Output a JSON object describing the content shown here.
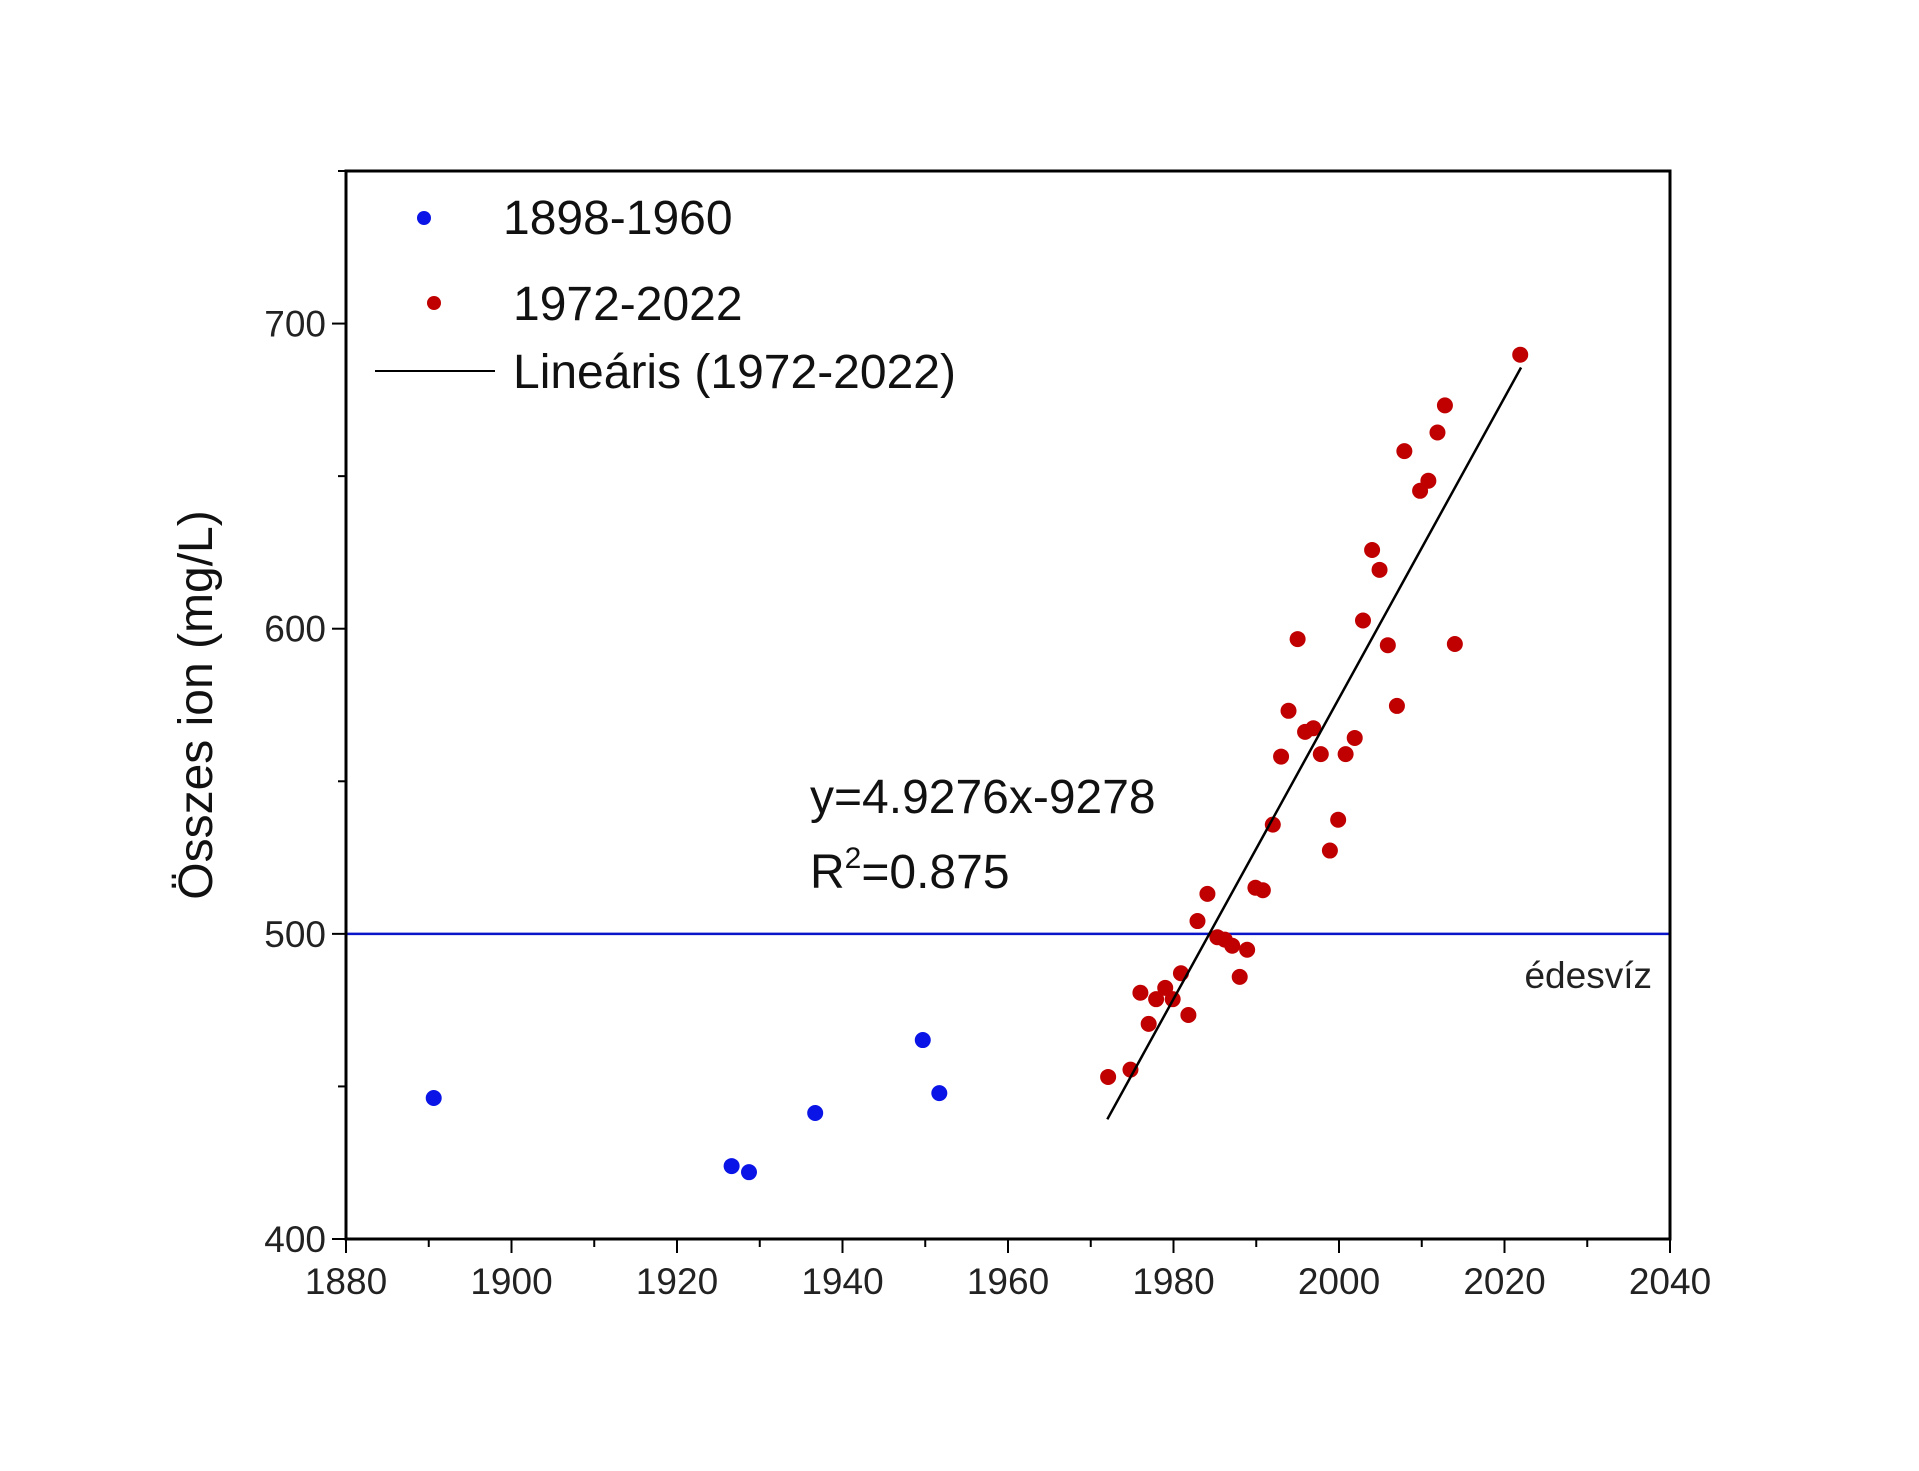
{
  "chart_data": {
    "type": "scatter",
    "title": "",
    "xlabel": "",
    "ylabel": "Összes ion (mg/L)",
    "xlim": [
      1880,
      2040
    ],
    "ylim": [
      400,
      750
    ],
    "xticks": [
      1880,
      1900,
      1920,
      1940,
      1960,
      1980,
      2000,
      2020,
      2040
    ],
    "yticks": [
      400,
      500,
      600,
      700
    ],
    "grid": false,
    "legend_placement": "top-left",
    "series": [
      {
        "name": "1898-1960",
        "kind": "scatter",
        "color": "#0a14e6",
        "points": [
          [
            1890.6,
            446.2
          ],
          [
            1926.6,
            423.9
          ],
          [
            1928.7,
            421.9
          ],
          [
            1936.7,
            441.3
          ],
          [
            1949.7,
            465.2
          ],
          [
            1951.7,
            447.8
          ]
        ]
      },
      {
        "name": "1972-2022",
        "kind": "scatter",
        "color": "#c00000",
        "points": [
          [
            1972.1,
            453.1
          ],
          [
            1974.8,
            455.5
          ],
          [
            1976.0,
            480.7
          ],
          [
            1977.0,
            470.5
          ],
          [
            1977.9,
            478.6
          ],
          [
            1979.0,
            482.3
          ],
          [
            1979.9,
            478.6
          ],
          [
            1980.9,
            487.1
          ],
          [
            1981.8,
            473.4
          ],
          [
            1982.9,
            504.2
          ],
          [
            1984.1,
            513.1
          ],
          [
            1985.3,
            498.9
          ],
          [
            1986.2,
            498.1
          ],
          [
            1987.1,
            496.1
          ],
          [
            1988.0,
            485.9
          ],
          [
            1988.9,
            494.8
          ],
          [
            1989.9,
            515.1
          ],
          [
            1990.8,
            514.3
          ],
          [
            1992.0,
            535.8
          ],
          [
            1993.0,
            558.1
          ],
          [
            1993.9,
            573.1
          ],
          [
            1995.0,
            596.6
          ],
          [
            1995.9,
            566.2
          ],
          [
            1996.9,
            567.4
          ],
          [
            1997.8,
            558.9
          ],
          [
            1998.9,
            527.3
          ],
          [
            1999.9,
            537.4
          ],
          [
            2000.8,
            558.9
          ],
          [
            2001.9,
            564.2
          ],
          [
            2002.9,
            602.7
          ],
          [
            2004.0,
            625.8
          ],
          [
            2004.9,
            619.3
          ],
          [
            2005.9,
            594.6
          ],
          [
            2007.0,
            574.7
          ],
          [
            2007.9,
            658.2
          ],
          [
            2009.8,
            645.2
          ],
          [
            2010.8,
            648.5
          ],
          [
            2011.9,
            664.3
          ],
          [
            2012.8,
            673.2
          ],
          [
            2014.0,
            595.0
          ],
          [
            2021.9,
            689.8
          ]
        ]
      },
      {
        "name": "Lineáris (1972-2022)",
        "kind": "line",
        "color": "#000000",
        "slope": 4.9276,
        "intercept": -9278,
        "x_range": [
          1972,
          2022
        ]
      }
    ],
    "reference_line": {
      "y": 500,
      "label": "édesvíz",
      "color": "#0a14c8"
    },
    "annotations": {
      "equation": "y=4.9276x-9278",
      "r2_prefix": "R",
      "r2_sup": "2",
      "r2_value": "=0.875"
    }
  }
}
